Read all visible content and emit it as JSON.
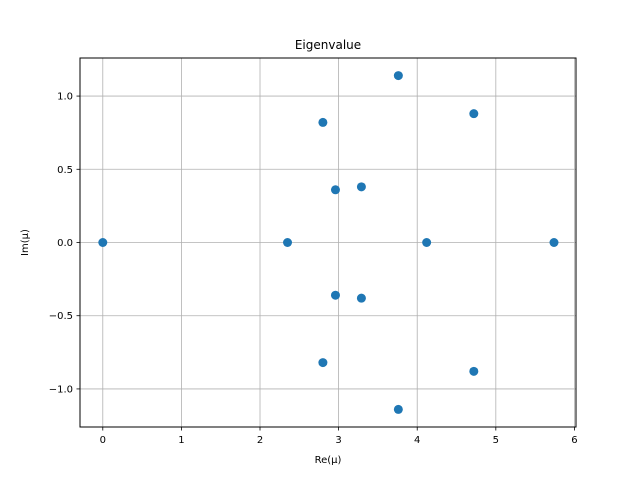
{
  "chart_data": {
    "type": "scatter",
    "title": "Eigenvalue",
    "xlabel": "Re(μ)",
    "ylabel": "Im(μ)",
    "xlim": [
      -0.29,
      6.02
    ],
    "ylim": [
      -1.26,
      1.26
    ],
    "xticks": [
      0,
      1,
      2,
      3,
      4,
      5,
      6
    ],
    "xtick_labels": [
      "0",
      "1",
      "2",
      "3",
      "4",
      "5",
      "6"
    ],
    "yticks": [
      -1.0,
      -0.5,
      0.0,
      0.5,
      1.0
    ],
    "ytick_labels": [
      "−1.0",
      "−0.5",
      "0.0",
      "0.5",
      "1.0"
    ],
    "grid": true,
    "color": "#1f77b4",
    "series": [
      {
        "points": [
          {
            "x": 0.0,
            "y": 0.0
          },
          {
            "x": 2.35,
            "y": 0.0
          },
          {
            "x": 2.8,
            "y": 0.82
          },
          {
            "x": 2.8,
            "y": -0.82
          },
          {
            "x": 2.96,
            "y": 0.36
          },
          {
            "x": 2.96,
            "y": -0.36
          },
          {
            "x": 3.29,
            "y": 0.38
          },
          {
            "x": 3.29,
            "y": -0.38
          },
          {
            "x": 3.76,
            "y": 1.14
          },
          {
            "x": 3.76,
            "y": -1.14
          },
          {
            "x": 4.12,
            "y": 0.0
          },
          {
            "x": 4.72,
            "y": 0.88
          },
          {
            "x": 4.72,
            "y": -0.88
          },
          {
            "x": 5.74,
            "y": 0.0
          }
        ]
      }
    ]
  }
}
